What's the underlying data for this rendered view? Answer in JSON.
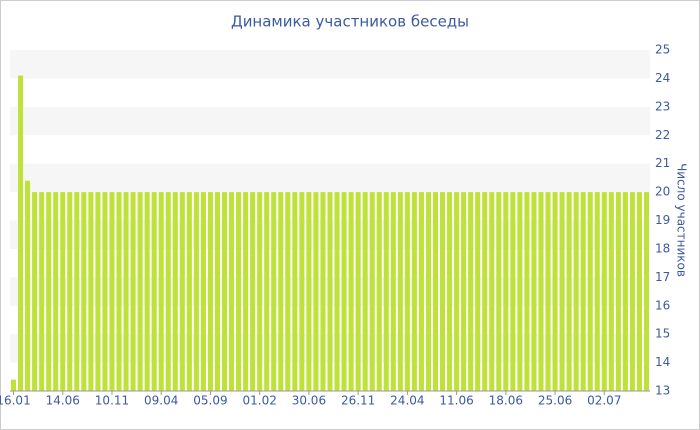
{
  "chart_data": {
    "type": "bar",
    "title": "Динамика участников беседы",
    "y_label": "Число участников",
    "categories": [
      "16.01",
      null,
      null,
      null,
      null,
      null,
      null,
      "14.06",
      null,
      null,
      null,
      null,
      null,
      null,
      "10.11",
      null,
      null,
      null,
      null,
      null,
      null,
      "09.04",
      null,
      null,
      null,
      null,
      null,
      null,
      "05.09",
      null,
      null,
      null,
      null,
      null,
      null,
      "01.02",
      null,
      null,
      null,
      null,
      null,
      null,
      "30.06",
      null,
      null,
      null,
      null,
      null,
      null,
      "26.11",
      null,
      null,
      null,
      null,
      null,
      null,
      "24.04",
      null,
      null,
      null,
      null,
      null,
      null,
      "11.06",
      null,
      null,
      null,
      null,
      null,
      null,
      "18.06",
      null,
      null,
      null,
      null,
      null,
      null,
      "25.06",
      null,
      null,
      null,
      null,
      null,
      null,
      "02.07",
      null,
      null,
      null,
      null,
      null,
      null
    ],
    "values": [
      13.4,
      24.1,
      20.4,
      20,
      20,
      20,
      20,
      20,
      20,
      20,
      20,
      20,
      20,
      20,
      20,
      20,
      20,
      20,
      20,
      20,
      20,
      20,
      20,
      20,
      20,
      20,
      20,
      20,
      20,
      20,
      20,
      20,
      20,
      20,
      20,
      20,
      20,
      20,
      20,
      20,
      20,
      20,
      20,
      20,
      20,
      20,
      20,
      20,
      20,
      20,
      20,
      20,
      20,
      20,
      20,
      20,
      20,
      20,
      20,
      20,
      20,
      20,
      20,
      20,
      20,
      20,
      20,
      20,
      20,
      20,
      20,
      20,
      20,
      20,
      20,
      20,
      20,
      20,
      20,
      20,
      20,
      20,
      20,
      20,
      20,
      20,
      20,
      20,
      20,
      20,
      20
    ],
    "color": "#bfe23a",
    "ylim": [
      13,
      25
    ],
    "yticks": [
      13,
      14,
      15,
      16,
      17,
      18,
      19,
      20,
      21,
      22,
      23,
      24,
      25
    ],
    "grid": "banded",
    "y_axis_side": "right"
  }
}
